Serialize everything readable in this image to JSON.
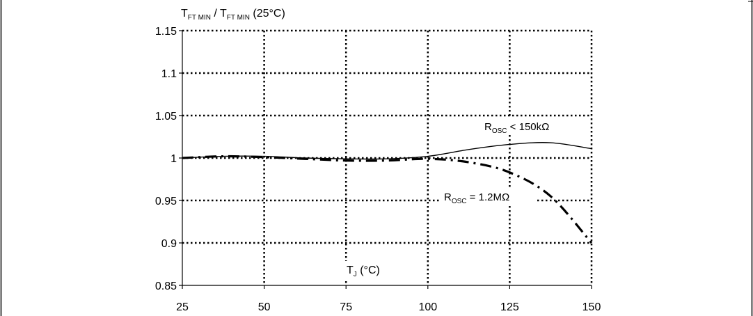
{
  "chart_data": {
    "type": "line",
    "x": [
      25,
      37.5,
      50,
      62.5,
      75,
      87.5,
      100,
      112.5,
      125,
      137.5,
      150
    ],
    "xlim": [
      25,
      150
    ],
    "ylim": [
      0.85,
      1.15
    ],
    "xticks": [
      25,
      50,
      75,
      100,
      125,
      150
    ],
    "yticks": [
      0.85,
      0.9,
      0.95,
      1,
      1.05,
      1.1,
      1.15
    ],
    "x_tick_labels": [
      "25",
      "50",
      "75",
      "100",
      "125",
      "150"
    ],
    "y_tick_labels": [
      "0.85",
      "0.9",
      "0.95",
      "1",
      "1.05",
      "1.1",
      "1.15"
    ],
    "grid": true,
    "ylabel": {
      "main": "T",
      "sub": "FT MIN",
      "sep": " / ",
      "main2": "T",
      "sub2": "FT MIN",
      "tail": " (25°C)"
    },
    "xlabel": {
      "main": "T",
      "sub": "J",
      "tail": " (°C)"
    },
    "series": [
      {
        "name": "R_OSC < 150kΩ",
        "style": "solid",
        "color": "#000000",
        "x": [
          25,
          37.5,
          50,
          62.5,
          75,
          87.5,
          100,
          112.5,
          125,
          137.5,
          150
        ],
        "values": [
          1.0,
          1.002,
          1.002,
          1.0,
          0.999,
          0.999,
          1.002,
          1.01,
          1.016,
          1.018,
          1.011
        ]
      },
      {
        "name": "R_OSC = 1.2MΩ",
        "style": "dashed",
        "color": "#000000",
        "x": [
          25,
          37.5,
          50,
          62.5,
          75,
          87.5,
          100,
          112.5,
          125,
          137.5,
          150
        ],
        "values": [
          1.0,
          1.002,
          1.001,
          0.999,
          0.997,
          0.997,
          0.999,
          0.995,
          0.983,
          0.955,
          0.9
        ]
      }
    ],
    "annotations": [
      {
        "main": "R",
        "sub": "OSC",
        "tail": " < 150kΩ",
        "x": 138,
        "y": 1.035
      },
      {
        "main": "R",
        "sub": "OSC",
        "tail": " = 1.2MΩ",
        "x": 119,
        "y": 0.962
      }
    ]
  }
}
